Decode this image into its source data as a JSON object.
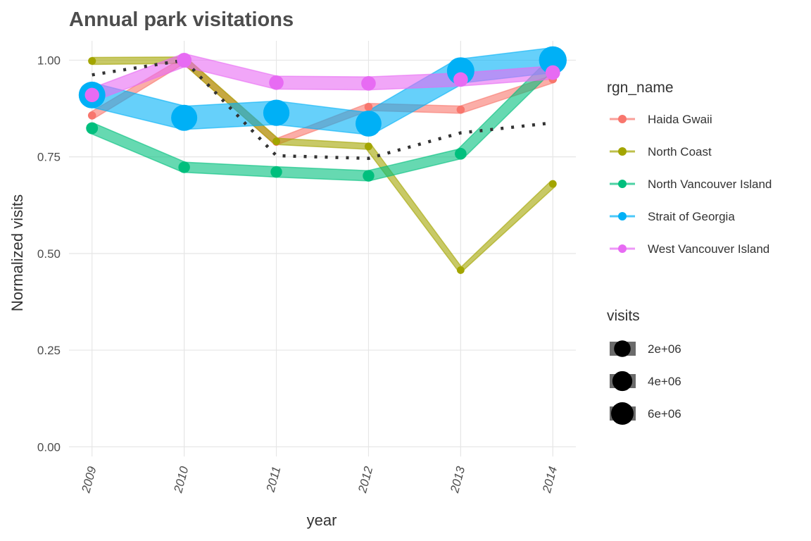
{
  "chart_data": {
    "type": "line",
    "title": "Annual park visitations",
    "xlabel": "year",
    "ylabel": "Normalized visits",
    "x": [
      2009,
      2010,
      2011,
      2012,
      2013,
      2014
    ],
    "x_tick_labels": [
      "2009",
      "2010",
      "2011",
      "2012",
      "2013",
      "2014"
    ],
    "y_ticks": [
      0.0,
      0.25,
      0.5,
      0.75,
      1.0
    ],
    "y_tick_labels": [
      "0.00",
      "0.25",
      "0.50",
      "0.75",
      "1.00"
    ],
    "ylim": [
      0,
      1.05
    ],
    "grid": true,
    "legend_color_title": "rgn_name",
    "legend_size_title": "visits",
    "series": [
      {
        "name": "Haida Gwaii",
        "color": "#F8766D",
        "values": [
          0.857,
          1.0,
          0.789,
          0.879,
          0.872,
          0.951
        ],
        "visits": [
          20000,
          23000,
          18000,
          20000,
          20000,
          22000
        ]
      },
      {
        "name": "North Coast",
        "color": "#A3A500",
        "values": [
          0.998,
          1.0,
          0.79,
          0.777,
          0.457,
          0.68
        ],
        "visits": [
          10000,
          10000,
          8000,
          8000,
          5000,
          7000
        ]
      },
      {
        "name": "North Vancouver Island",
        "color": "#00BF7D",
        "values": [
          0.824,
          0.723,
          0.711,
          0.701,
          0.758,
          0.993
        ],
        "visits": [
          400000,
          350000,
          345000,
          340000,
          370000,
          480000
        ]
      },
      {
        "name": "Strait of Georgia",
        "color": "#00B0F6",
        "values": [
          0.91,
          0.851,
          0.864,
          0.836,
          0.972,
          1.0
        ],
        "visits": [
          6500000,
          6100000,
          6200000,
          6000000,
          7000000,
          7200000
        ]
      },
      {
        "name": "West Vancouver Island",
        "color": "#E76BF3",
        "values": [
          0.91,
          1.0,
          0.942,
          0.94,
          0.95,
          0.968
        ],
        "visits": [
          900000,
          1000000,
          940000,
          940000,
          950000,
          970000
        ]
      }
    ],
    "mean_line": {
      "values": [
        0.962,
        1.0,
        0.753,
        0.746,
        0.812,
        0.838
      ]
    },
    "size_legend": [
      {
        "label": "2e+06",
        "value": 2000000
      },
      {
        "label": "4e+06",
        "value": 4000000
      },
      {
        "label": "6e+06",
        "value": 6000000
      }
    ]
  }
}
